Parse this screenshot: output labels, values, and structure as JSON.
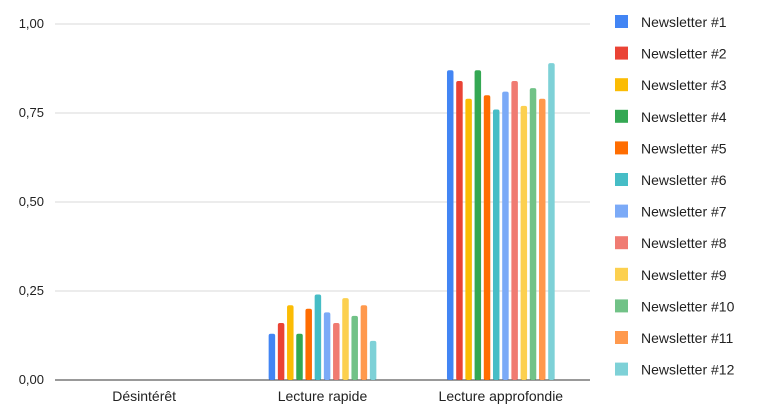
{
  "chart_data": {
    "type": "bar",
    "categories": [
      "Désintérêt",
      "Lecture rapide",
      "Lecture approfondie"
    ],
    "y_ticks": [
      "0,00",
      "0,25",
      "0,50",
      "0,75",
      "1,00"
    ],
    "ylim": [
      0,
      1
    ],
    "grid": true,
    "legend_position": "right",
    "series": [
      {
        "name": "Newsletter #1",
        "color": "#4285F4",
        "values": [
          0,
          0.13,
          0.87
        ]
      },
      {
        "name": "Newsletter #2",
        "color": "#EA4335",
        "values": [
          0,
          0.16,
          0.84
        ]
      },
      {
        "name": "Newsletter #3",
        "color": "#FBBC04",
        "values": [
          0,
          0.21,
          0.79
        ]
      },
      {
        "name": "Newsletter #4",
        "color": "#34A853",
        "values": [
          0,
          0.13,
          0.87
        ]
      },
      {
        "name": "Newsletter #5",
        "color": "#FF6D01",
        "values": [
          0,
          0.2,
          0.8
        ]
      },
      {
        "name": "Newsletter #6",
        "color": "#46BDC6",
        "values": [
          0,
          0.24,
          0.76
        ]
      },
      {
        "name": "Newsletter #7",
        "color": "#7BAAF7",
        "values": [
          0,
          0.19,
          0.81
        ]
      },
      {
        "name": "Newsletter #8",
        "color": "#F07B72",
        "values": [
          0,
          0.16,
          0.84
        ]
      },
      {
        "name": "Newsletter #9",
        "color": "#FCD04F",
        "values": [
          0,
          0.23,
          0.77
        ]
      },
      {
        "name": "Newsletter #10",
        "color": "#71C287",
        "values": [
          0,
          0.18,
          0.82
        ]
      },
      {
        "name": "Newsletter #11",
        "color": "#FF994D",
        "values": [
          0,
          0.21,
          0.79
        ]
      },
      {
        "name": "Newsletter #12",
        "color": "#7ED1D7",
        "values": [
          0,
          0.11,
          0.89
        ]
      }
    ]
  }
}
